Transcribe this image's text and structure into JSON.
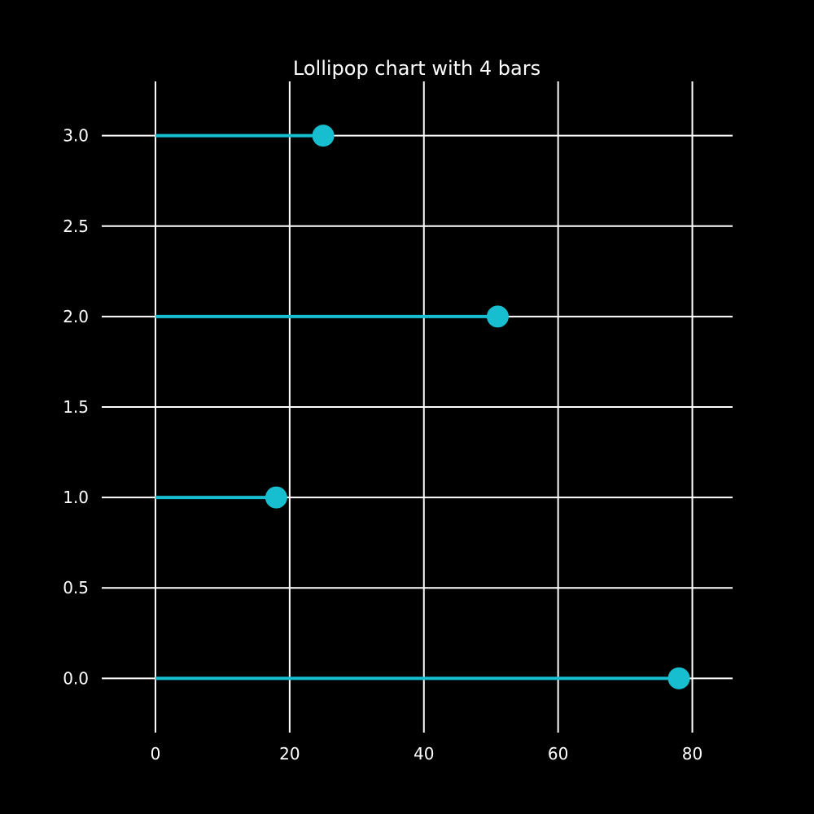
{
  "chart_data": {
    "type": "lollipop",
    "orientation": "horizontal",
    "title": "Lollipop chart with 4 bars",
    "xlabel": "",
    "ylabel": "",
    "points": [
      {
        "y": 0,
        "x": 78
      },
      {
        "y": 1,
        "x": 18
      },
      {
        "y": 2,
        "x": 51
      },
      {
        "y": 3,
        "x": 25
      }
    ],
    "xlim": [
      -8,
      86
    ],
    "ylim": [
      -0.3,
      3.3
    ],
    "xticks": [
      0,
      20,
      40,
      60,
      80
    ],
    "xtick_labels": [
      "0",
      "20",
      "40",
      "60",
      "80"
    ],
    "yticks": [
      0,
      0.5,
      1,
      1.5,
      2,
      2.5,
      3
    ],
    "ytick_labels": [
      "0.0",
      "0.5",
      "1.0",
      "1.5",
      "2.0",
      "2.5",
      "3.0"
    ],
    "grid": true,
    "colors": {
      "background": "#000000",
      "grid": "#ffffff",
      "marker": "#17becf",
      "text": "#ffffff"
    }
  }
}
